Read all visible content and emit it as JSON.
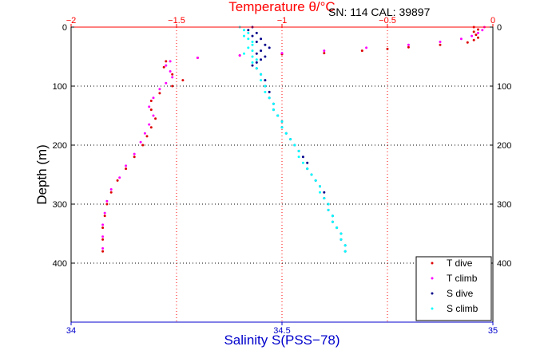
{
  "chart_data": {
    "type": "scatter",
    "title": "Temperature θ/°C",
    "header_info": "SN: 114  CAL: 39897",
    "ylabel": "Depth (m)",
    "xlabel": "Salinity S(PSS−78)",
    "ylim": [
      0,
      500
    ],
    "y_reversed": true,
    "y_ticks": [
      0,
      100,
      200,
      300,
      400
    ],
    "y_tick_labels": [
      "0",
      "100",
      "200",
      "300",
      "400"
    ],
    "top_axis": {
      "label": "Temperature θ/°C",
      "range": [
        -2,
        0
      ],
      "ticks": [
        -2,
        -1.5,
        -1,
        -0.5,
        0
      ],
      "tick_labels": [
        "−2",
        "−1.5",
        "−1",
        "−0.5",
        "0"
      ],
      "color": "#ff0000"
    },
    "bottom_axis": {
      "label": "Salinity S(PSS−78)",
      "range": [
        34,
        35
      ],
      "ticks": [
        34,
        34.5,
        35
      ],
      "tick_labels": [
        "34",
        "34.5",
        "35"
      ],
      "color": "#0000cc"
    },
    "grid": true,
    "legend_position": "bottom-right",
    "series": [
      {
        "name": "T dive",
        "axis": "temperature",
        "color": "#dd0000",
        "points": [
          [
            -0.09,
            0
          ],
          [
            -0.07,
            4
          ],
          [
            -0.09,
            8
          ],
          [
            -0.08,
            13
          ],
          [
            -0.07,
            18
          ],
          [
            -0.09,
            22
          ],
          [
            -0.12,
            26
          ],
          [
            -0.25,
            30
          ],
          [
            -0.4,
            34
          ],
          [
            -0.5,
            37
          ],
          [
            -0.62,
            40
          ],
          [
            -0.8,
            44
          ],
          [
            -1.0,
            46
          ],
          [
            -1.2,
            48
          ],
          [
            -1.4,
            52
          ],
          [
            -1.55,
            58
          ],
          [
            -1.56,
            68
          ],
          [
            -1.52,
            80
          ],
          [
            -1.47,
            90
          ],
          [
            -1.52,
            100
          ],
          [
            -1.58,
            112
          ],
          [
            -1.62,
            125
          ],
          [
            -1.62,
            140
          ],
          [
            -1.6,
            155
          ],
          [
            -1.62,
            170
          ],
          [
            -1.64,
            185
          ],
          [
            -1.66,
            200
          ],
          [
            -1.7,
            220
          ],
          [
            -1.74,
            240
          ],
          [
            -1.78,
            260
          ],
          [
            -1.81,
            280
          ],
          [
            -1.83,
            300
          ],
          [
            -1.84,
            320
          ],
          [
            -1.85,
            340
          ],
          [
            -1.85,
            360
          ],
          [
            -1.85,
            380
          ]
        ]
      },
      {
        "name": "T climb",
        "axis": "temperature",
        "color": "#ff00ff",
        "points": [
          [
            -0.04,
            0
          ],
          [
            -0.05,
            5
          ],
          [
            -0.07,
            10
          ],
          [
            -0.1,
            15
          ],
          [
            -0.15,
            20
          ],
          [
            -0.25,
            25
          ],
          [
            -0.4,
            30
          ],
          [
            -0.6,
            35
          ],
          [
            -0.8,
            40
          ],
          [
            -1.0,
            44
          ],
          [
            -1.2,
            48
          ],
          [
            -1.4,
            52
          ],
          [
            -1.53,
            58
          ],
          [
            -1.55,
            65
          ],
          [
            -1.53,
            75
          ],
          [
            -1.52,
            85
          ],
          [
            -1.55,
            95
          ],
          [
            -1.58,
            105
          ],
          [
            -1.61,
            120
          ],
          [
            -1.63,
            135
          ],
          [
            -1.61,
            150
          ],
          [
            -1.63,
            165
          ],
          [
            -1.65,
            180
          ],
          [
            -1.67,
            195
          ],
          [
            -1.7,
            215
          ],
          [
            -1.74,
            235
          ],
          [
            -1.77,
            255
          ],
          [
            -1.81,
            275
          ],
          [
            -1.83,
            295
          ],
          [
            -1.84,
            315
          ],
          [
            -1.85,
            335
          ],
          [
            -1.85,
            355
          ],
          [
            -1.85,
            375
          ]
        ]
      },
      {
        "name": "S dive",
        "axis": "salinity",
        "color": "#00008b",
        "points": [
          [
            34.43,
            0
          ],
          [
            34.42,
            5
          ],
          [
            34.44,
            10
          ],
          [
            34.43,
            15
          ],
          [
            34.45,
            20
          ],
          [
            34.44,
            25
          ],
          [
            34.46,
            30
          ],
          [
            34.47,
            35
          ],
          [
            34.45,
            40
          ],
          [
            34.44,
            45
          ],
          [
            34.46,
            50
          ],
          [
            34.45,
            55
          ],
          [
            34.44,
            60
          ],
          [
            34.43,
            65
          ],
          [
            34.44,
            70
          ],
          [
            34.45,
            80
          ],
          [
            34.46,
            90
          ],
          [
            34.46,
            100
          ],
          [
            34.47,
            110
          ],
          [
            34.47,
            120
          ],
          [
            34.48,
            130
          ],
          [
            34.48,
            140
          ],
          [
            34.49,
            150
          ],
          [
            34.5,
            160
          ],
          [
            34.5,
            170
          ],
          [
            34.51,
            180
          ],
          [
            34.52,
            190
          ],
          [
            34.53,
            200
          ],
          [
            34.54,
            210
          ],
          [
            34.55,
            220
          ],
          [
            34.56,
            230
          ],
          [
            34.56,
            240
          ],
          [
            34.57,
            250
          ],
          [
            34.58,
            260
          ],
          [
            34.59,
            270
          ],
          [
            34.6,
            280
          ],
          [
            34.6,
            290
          ],
          [
            34.61,
            300
          ],
          [
            34.61,
            310
          ],
          [
            34.62,
            320
          ],
          [
            34.62,
            330
          ],
          [
            34.63,
            340
          ],
          [
            34.64,
            350
          ],
          [
            34.64,
            360
          ],
          [
            34.65,
            370
          ],
          [
            34.65,
            380
          ]
        ]
      },
      {
        "name": "S climb",
        "axis": "salinity",
        "color": "#00ffff",
        "points": [
          [
            34.4,
            0
          ],
          [
            34.41,
            5
          ],
          [
            34.42,
            10
          ],
          [
            34.41,
            15
          ],
          [
            34.42,
            20
          ],
          [
            34.43,
            25
          ],
          [
            34.43,
            30
          ],
          [
            34.42,
            35
          ],
          [
            34.43,
            40
          ],
          [
            34.41,
            45
          ],
          [
            34.43,
            50
          ],
          [
            34.44,
            55
          ],
          [
            34.43,
            60
          ],
          [
            34.44,
            70
          ],
          [
            34.45,
            80
          ],
          [
            34.45,
            90
          ],
          [
            34.46,
            100
          ],
          [
            34.46,
            110
          ],
          [
            34.47,
            120
          ],
          [
            34.48,
            130
          ],
          [
            34.48,
            140
          ],
          [
            34.49,
            150
          ],
          [
            34.5,
            160
          ],
          [
            34.5,
            170
          ],
          [
            34.51,
            180
          ],
          [
            34.52,
            190
          ],
          [
            34.53,
            200
          ],
          [
            34.54,
            210
          ],
          [
            34.54,
            220
          ],
          [
            34.55,
            230
          ],
          [
            34.56,
            240
          ],
          [
            34.57,
            250
          ],
          [
            34.58,
            260
          ],
          [
            34.59,
            270
          ],
          [
            34.59,
            280
          ],
          [
            34.6,
            290
          ],
          [
            34.61,
            300
          ],
          [
            34.61,
            310
          ],
          [
            34.62,
            320
          ],
          [
            34.62,
            330
          ],
          [
            34.63,
            340
          ],
          [
            34.64,
            350
          ],
          [
            34.64,
            360
          ],
          [
            34.65,
            370
          ],
          [
            34.65,
            380
          ]
        ]
      }
    ]
  }
}
